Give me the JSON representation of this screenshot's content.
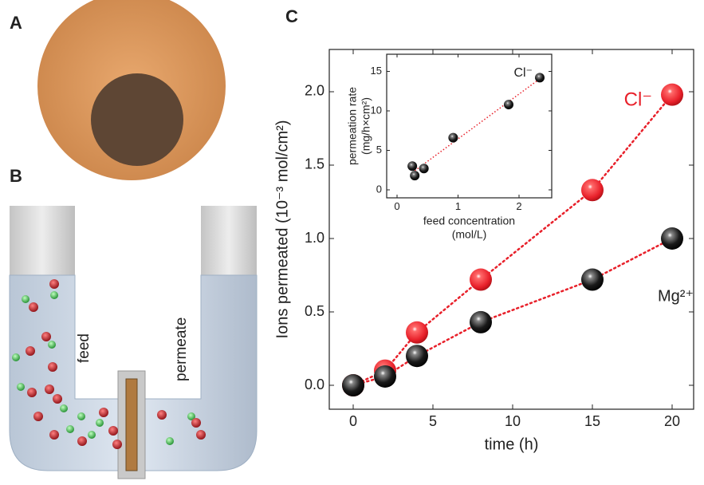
{
  "panels": {
    "a": "A",
    "b": "B",
    "c": "C",
    "feed": "feed",
    "permeate": "permeate"
  },
  "chart_data": [
    {
      "type": "scatter",
      "xlabel": "time (h)",
      "ylabel": "Ions permeated (10⁻³ mol/cm²)",
      "xlim": [
        -1.5,
        21.35
      ],
      "ylim": [
        -0.163,
        2.288
      ],
      "xticks": [
        0,
        5,
        10,
        15,
        20
      ],
      "yticks": [
        {
          "value": 0,
          "label": "0.0"
        },
        0.5,
        {
          "value": 1,
          "label": "1.0"
        },
        1.5,
        {
          "value": 2,
          "label": "2.0"
        }
      ],
      "series": [
        {
          "name": "Cl⁻",
          "color": "#e8202a",
          "x": [
            0,
            2,
            4,
            8,
            15,
            20
          ],
          "values": [
            0,
            0.1,
            0.36,
            0.72,
            1.33,
            1.98
          ]
        },
        {
          "name": "Mg²⁺",
          "color": "#1a1a1a",
          "x": [
            0,
            2,
            4,
            8,
            15,
            20
          ],
          "values": [
            0,
            0.06,
            0.2,
            0.43,
            0.72,
            1.0
          ]
        }
      ]
    },
    {
      "type": "scatter",
      "xlabel": [
        "feed concentration",
        "(mol/L)"
      ],
      "ylabel": [
        "permeation rate",
        "(mg/h×cm²)"
      ],
      "annotation": "Cl⁻",
      "xlim": [
        -0.17,
        2.536
      ],
      "ylim": [
        -1.01,
        17.17
      ],
      "xticks": [
        0,
        1,
        2
      ],
      "yticks": [
        0,
        5,
        10,
        15
      ],
      "series": [
        {
          "color": "#1a1a1a",
          "x": [
            0.25,
            0.29,
            0.44,
            0.92,
            1.83,
            2.34
          ],
          "values": [
            3.0,
            1.8,
            2.7,
            6.6,
            10.8,
            14.2
          ]
        }
      ]
    }
  ]
}
